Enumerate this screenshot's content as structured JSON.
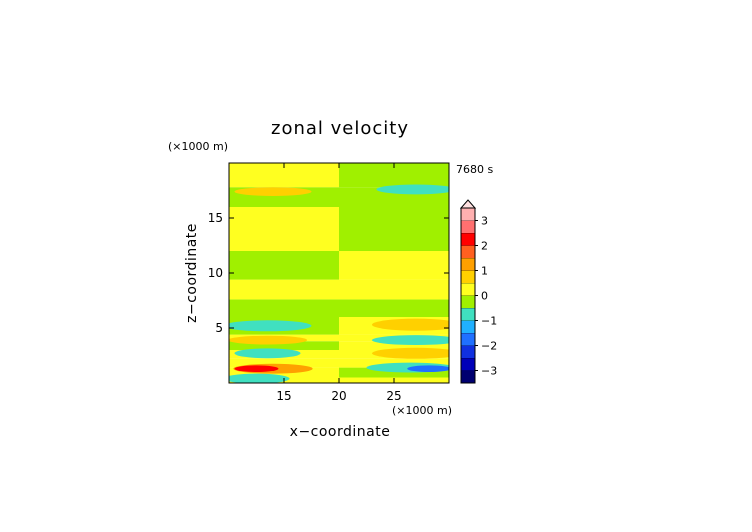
{
  "chart_data": {
    "type": "heatmap",
    "title": "zonal velocity",
    "xlabel": "x−coordinate",
    "ylabel": "z−coordinate",
    "x_units": "(×1000 m)",
    "y_units": "(×1000 m)",
    "time_label": "7680 s",
    "xlim": [
      10,
      30
    ],
    "ylim": [
      0,
      20
    ],
    "x_ticks": [
      15,
      20,
      25
    ],
    "y_ticks": [
      5,
      10,
      15
    ],
    "colorbar": {
      "levels": [
        -3.5,
        -3,
        -2.5,
        -2,
        -1.5,
        -1,
        -0.5,
        0,
        0.5,
        1,
        1.5,
        2,
        2.5,
        3,
        3.5
      ],
      "tick_values": [
        -3,
        -2,
        -1,
        0,
        1,
        2,
        3
      ],
      "tick_labels": [
        "−3",
        "−2",
        "−1",
        "0",
        "1",
        "2",
        "3"
      ],
      "colors": [
        "#000070",
        "#0000b8",
        "#1030e0",
        "#2070ff",
        "#20b0ff",
        "#40e0c0",
        "#a0f000",
        "#ffff20",
        "#ffd000",
        "#ffa000",
        "#ff6020",
        "#ff0000",
        "#ff7070",
        "#ffb0b0"
      ],
      "extend": "max"
    },
    "field_description": {
      "background_bands": [
        {
          "z": [
            0.0,
            0.5
          ],
          "left": 0.2,
          "right": 0.2
        },
        {
          "z": [
            0.5,
            1.4
          ],
          "left": 0.3,
          "right": -0.1
        },
        {
          "z": [
            1.4,
            2.2
          ],
          "left": 0.2,
          "right": 0.2
        },
        {
          "z": [
            2.2,
            3.0
          ],
          "left": 0.3,
          "right": 0.2
        },
        {
          "z": [
            3.0,
            3.8
          ],
          "left": -0.1,
          "right": 0.2
        },
        {
          "z": [
            3.8,
            4.4
          ],
          "left": 0.2,
          "right": 0.2
        },
        {
          "z": [
            4.4,
            6.0
          ],
          "left": -0.2,
          "right": 0.3
        },
        {
          "z": [
            6.0,
            7.6
          ],
          "left": -0.2,
          "right": -0.2
        },
        {
          "z": [
            7.6,
            9.4
          ],
          "left": 0.2,
          "right": 0.2
        },
        {
          "z": [
            9.4,
            12.0
          ],
          "left": -0.2,
          "right": 0.2
        },
        {
          "z": [
            12.0,
            16.0
          ],
          "left": 0.2,
          "right": -0.2
        },
        {
          "z": [
            16.0,
            17.8
          ],
          "left": -0.2,
          "right": -0.2
        },
        {
          "z": [
            17.8,
            20.0
          ],
          "left": 0.2,
          "right": -0.2
        }
      ],
      "anomalies": [
        {
          "x": 12.5,
          "z": 0.4,
          "rx": 3.0,
          "rz": 0.45,
          "value": -0.8
        },
        {
          "x": 14.0,
          "z": 1.3,
          "rx": 3.6,
          "rz": 0.45,
          "value": 1.2
        },
        {
          "x": 12.5,
          "z": 1.3,
          "rx": 2.0,
          "rz": 0.3,
          "value": 2.2
        },
        {
          "x": 13.5,
          "z": 2.7,
          "rx": 3.0,
          "rz": 0.45,
          "value": -0.8
        },
        {
          "x": 13.5,
          "z": 3.9,
          "rx": 3.6,
          "rz": 0.4,
          "value": 0.8
        },
        {
          "x": 13.5,
          "z": 5.2,
          "rx": 4.0,
          "rz": 0.5,
          "value": -0.8
        },
        {
          "x": 14.0,
          "z": 17.4,
          "rx": 3.5,
          "rz": 0.4,
          "value": 0.7
        },
        {
          "x": 26.5,
          "z": 1.4,
          "rx": 4.0,
          "rz": 0.45,
          "value": -0.8
        },
        {
          "x": 28.2,
          "z": 1.3,
          "rx": 2.0,
          "rz": 0.3,
          "value": -1.8
        },
        {
          "x": 27.0,
          "z": 2.7,
          "rx": 4.0,
          "rz": 0.5,
          "value": 0.7
        },
        {
          "x": 27.0,
          "z": 3.9,
          "rx": 4.0,
          "rz": 0.45,
          "value": -0.8
        },
        {
          "x": 27.0,
          "z": 5.3,
          "rx": 4.0,
          "rz": 0.55,
          "value": 0.7
        },
        {
          "x": 27.0,
          "z": 17.6,
          "rx": 3.6,
          "rz": 0.45,
          "value": -0.8
        }
      ]
    }
  }
}
